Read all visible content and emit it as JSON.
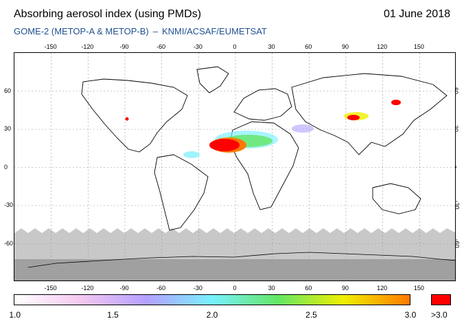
{
  "header": {
    "title": "Absorbing aerosol index (using PMDs)",
    "date": "01 June 2018",
    "instrument": "GOME-2 (METOP-A & METOP-B)",
    "separator": "–",
    "provider": "KNMI/ACSAF/EUMETSAT"
  },
  "map": {
    "projection": "equirectangular",
    "lon_range": [
      -180,
      180
    ],
    "lat_range": [
      -90,
      90
    ],
    "grid": true,
    "lon_ticks": [
      "-150",
      "-120",
      "-90",
      "-60",
      "-30",
      "0",
      "30",
      "60",
      "90",
      "120",
      "150"
    ],
    "lat_ticks": [
      "60",
      "30",
      "0",
      "-30",
      "-60"
    ],
    "colors": {
      "land_outline": "#000000",
      "no_data_gray": "#c8c8c8",
      "polar_gray": "#a0a0a0",
      "high_value_red": "#ff0000"
    }
  },
  "colorbar": {
    "labels": [
      "1.0",
      "1.5",
      "2.0",
      "2.5",
      "3.0"
    ],
    "overflow_label": ">3.0",
    "range": [
      1.0,
      3.0
    ],
    "colors": [
      "#ffffff",
      "#f4c8f0",
      "#b4a0ff",
      "#78f0ff",
      "#64e664",
      "#f0f000",
      "#ff7800",
      "#ff0000"
    ]
  }
}
